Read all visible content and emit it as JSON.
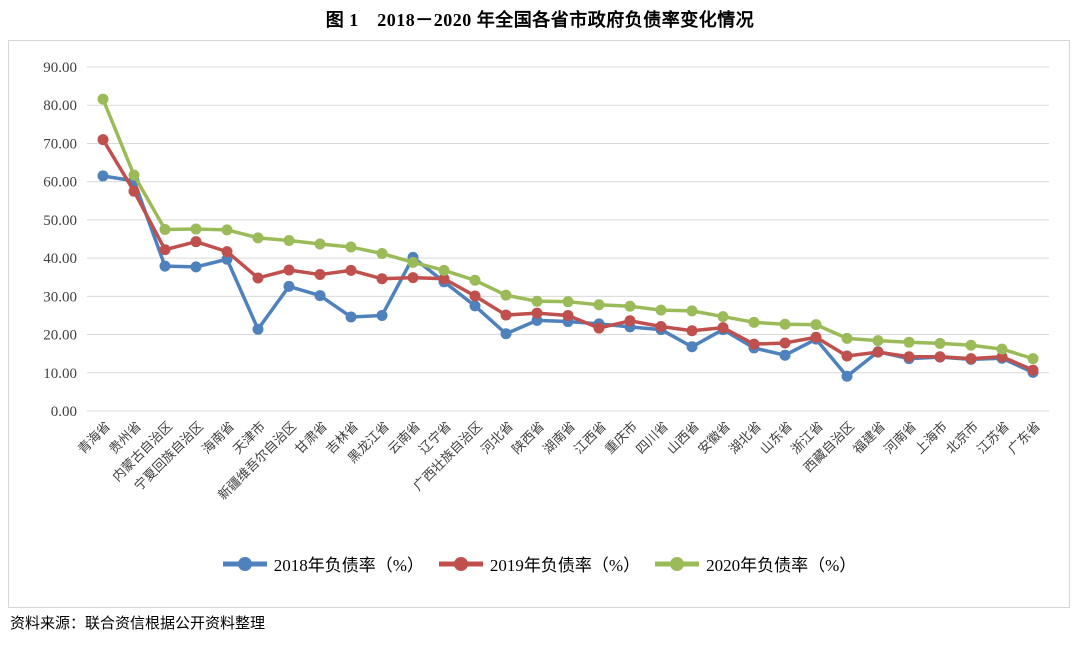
{
  "figure": {
    "title": "图 1　2018－2020 年全国各省市政府负债率变化情况",
    "source": "资料来源：联合资信根据公开资料整理"
  },
  "chart_data": {
    "type": "line",
    "title": "2018-2020 年全国各省市政府负债率变化情况",
    "categories": [
      "青海省",
      "贵州省",
      "内蒙古自治区",
      "宁夏回族自治区",
      "海南省",
      "天津市",
      "新疆维吾尔自治区",
      "甘肃省",
      "吉林省",
      "黑龙江省",
      "云南省",
      "辽宁省",
      "广西壮族自治区",
      "河北省",
      "陕西省",
      "湖南省",
      "江西省",
      "重庆市",
      "四川省",
      "山西省",
      "安徽省",
      "湖北省",
      "山东省",
      "浙江省",
      "西藏自治区",
      "福建省",
      "河南省",
      "上海市",
      "北京市",
      "江苏省",
      "广东省"
    ],
    "series": [
      {
        "name": "2018年负债率（%）",
        "color": "#4F81BD",
        "values": [
          61.5,
          60.2,
          37.9,
          37.7,
          39.7,
          21.4,
          32.6,
          30.2,
          24.6,
          25.0,
          40.2,
          33.8,
          27.5,
          20.2,
          23.7,
          23.4,
          22.8,
          22.0,
          21.3,
          16.8,
          21.3,
          16.5,
          14.6,
          18.8,
          9.1,
          15.5,
          13.7,
          14.1,
          13.5,
          13.8,
          10.1
        ]
      },
      {
        "name": "2019年负债率（%）",
        "color": "#C0504D",
        "values": [
          71.0,
          57.5,
          42.2,
          44.3,
          41.7,
          34.8,
          36.9,
          35.7,
          36.8,
          34.6,
          34.9,
          34.6,
          30.1,
          25.1,
          25.6,
          25.0,
          21.7,
          23.6,
          22.1,
          21.0,
          21.8,
          17.5,
          17.8,
          19.3,
          14.4,
          15.4,
          14.2,
          14.2,
          13.7,
          14.2,
          10.7
        ]
      },
      {
        "name": "2020年负债率（%）",
        "color": "#9BBB59",
        "values": [
          81.6,
          61.7,
          47.5,
          47.6,
          47.4,
          45.3,
          44.6,
          43.7,
          42.9,
          41.2,
          38.9,
          36.8,
          34.2,
          30.3,
          28.7,
          28.6,
          27.8,
          27.4,
          26.4,
          26.2,
          24.7,
          23.2,
          22.7,
          22.6,
          19.0,
          18.4,
          18.0,
          17.7,
          17.2,
          16.2,
          13.7
        ]
      }
    ],
    "ylim": [
      0,
      90
    ],
    "ytick_step": 10,
    "ytick_decimals": 2,
    "grid": "horizontal",
    "legend_position": "bottom",
    "xlabel": "",
    "ylabel": ""
  },
  "style_colors": {
    "grid": "#d9d9d9",
    "axis_text": "#404040",
    "frame_border": "#d6d6d6"
  }
}
